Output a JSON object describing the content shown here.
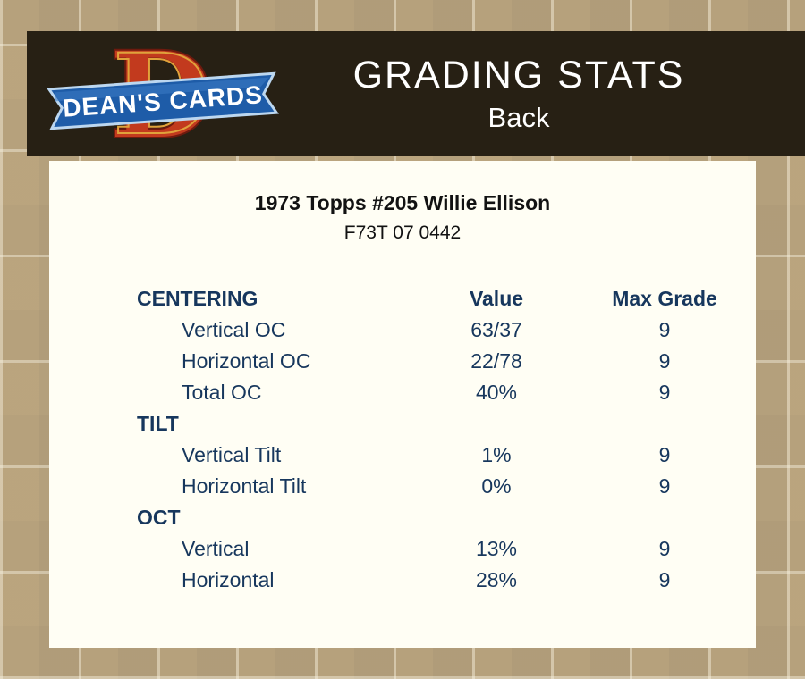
{
  "logo": {
    "monogram": "D",
    "banner_text": "DEAN'S CARDS"
  },
  "header": {
    "title": "GRADING STATS",
    "subtitle": "Back"
  },
  "card": {
    "title": "1973 Topps #205 Willie Ellison",
    "code": "F73T 07 0442"
  },
  "table": {
    "columns": {
      "value": "Value",
      "max_grade": "Max Grade"
    },
    "sections": [
      {
        "label": "CENTERING",
        "rows": [
          {
            "label": "Vertical OC",
            "value": "63/37",
            "max": "9"
          },
          {
            "label": "Horizontal OC",
            "value": "22/78",
            "max": "9"
          },
          {
            "label": "Total OC",
            "value": "40%",
            "max": "9"
          }
        ]
      },
      {
        "label": "TILT",
        "rows": [
          {
            "label": "Vertical Tilt",
            "value": "1%",
            "max": "9"
          },
          {
            "label": "Horizontal Tilt",
            "value": "0%",
            "max": "9"
          }
        ]
      },
      {
        "label": "OCT",
        "rows": [
          {
            "label": "Vertical",
            "value": "13%",
            "max": "9"
          },
          {
            "label": "Horizontal",
            "value": "28%",
            "max": "9"
          }
        ]
      }
    ]
  },
  "colors": {
    "page_bg": "#c7b28c",
    "header_bg": "#272014",
    "panel_bg": "#fffef4",
    "table_text": "#17375d",
    "logo_red": "#c23a1e",
    "logo_blue": "#1e5ca8",
    "header_text": "#ffffff"
  }
}
